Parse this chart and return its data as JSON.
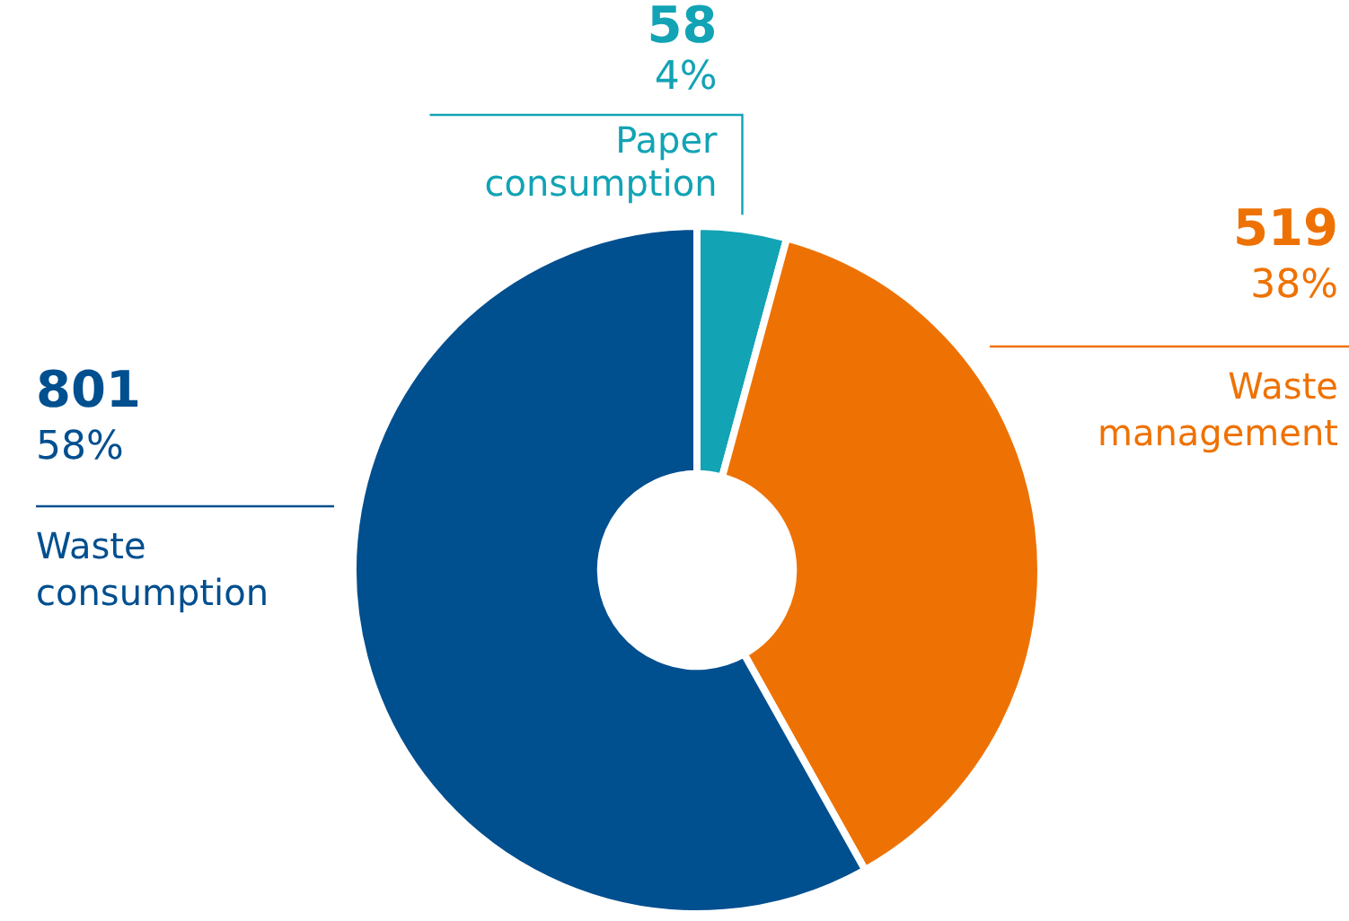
{
  "chart_data": {
    "type": "donut",
    "categories": [
      "Paper consumption",
      "Waste management",
      "Waste consumption"
    ],
    "values": [
      58,
      519,
      801
    ],
    "colors": [
      "#12a3b5",
      "#ee7203",
      "#004f8f"
    ],
    "data_labels": true,
    "annotations": [
      "4%",
      "38%",
      "58%"
    ],
    "legend": false
  }
}
